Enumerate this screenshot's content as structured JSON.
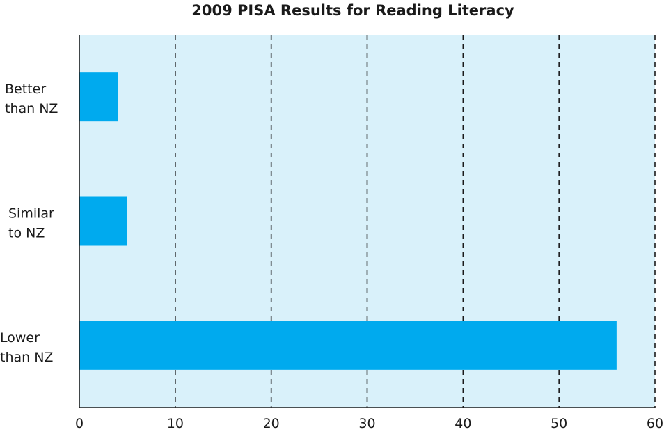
{
  "chart_data": {
    "type": "bar",
    "orientation": "horizontal",
    "title": "2009 PISA Results for Reading Literacy",
    "xlabel": "",
    "ylabel": "",
    "categories": [
      [
        "Better",
        "than NZ"
      ],
      [
        "Similar",
        "to NZ"
      ],
      [
        "Lower",
        "than NZ"
      ]
    ],
    "values": [
      4,
      5,
      56
    ],
    "xlim": [
      0,
      60
    ],
    "ticks": [
      0,
      10,
      20,
      30,
      40,
      50,
      60
    ],
    "grid": "vertical dashed",
    "legend": "none",
    "colors": {
      "bar": "#00aaee",
      "plot_background": "#d9f1fa",
      "grid": "#1a1a1a",
      "axis": "#1a1a1a"
    }
  }
}
